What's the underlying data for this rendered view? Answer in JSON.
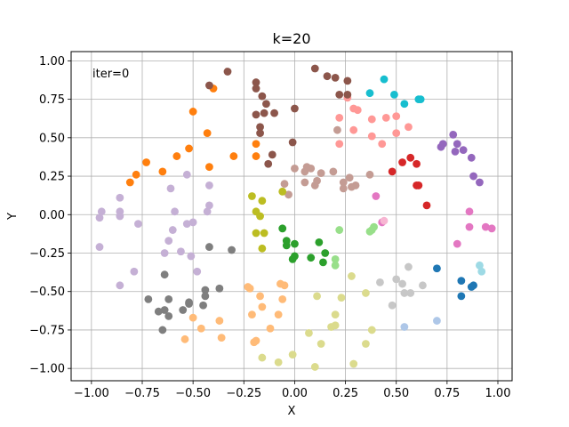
{
  "chart_data": {
    "type": "scatter",
    "title": "k=20",
    "xlabel": "X",
    "ylabel": "Y",
    "annotation": "iter=0",
    "xlim": [
      -1.1,
      1.07
    ],
    "ylim": [
      -1.08,
      1.06
    ],
    "xticks": [
      "−1.00",
      "−0.75",
      "−0.50",
      "−0.25",
      "0.00",
      "0.25",
      "0.50",
      "0.75",
      "1.00"
    ],
    "xtick_values": [
      -1.0,
      -0.75,
      -0.5,
      -0.25,
      0.0,
      0.25,
      0.5,
      0.75,
      1.0
    ],
    "yticks": [
      "1.00",
      "0.75",
      "0.50",
      "0.25",
      "0.00",
      "−0.25",
      "−0.50",
      "−0.75",
      "−1.00"
    ],
    "ytick_values": [
      1.0,
      0.75,
      0.5,
      0.25,
      0.0,
      -0.25,
      -0.5,
      -0.75,
      -1.0
    ],
    "grid": true,
    "series": [
      {
        "color": "#1f77b4",
        "points": [
          [
            0.7,
            -0.35
          ],
          [
            0.82,
            -0.43
          ],
          [
            0.88,
            -0.46
          ],
          [
            0.82,
            -0.53
          ],
          [
            0.87,
            -0.47
          ]
        ]
      },
      {
        "color": "#aec7e8",
        "points": [
          [
            0.7,
            -0.69
          ],
          [
            0.54,
            -0.73
          ]
        ]
      },
      {
        "color": "#ff7f0e",
        "points": [
          [
            -0.5,
            0.67
          ],
          [
            -0.43,
            0.53
          ],
          [
            -0.52,
            0.43
          ],
          [
            -0.42,
            0.31
          ],
          [
            -0.3,
            0.38
          ],
          [
            -0.19,
            0.46
          ],
          [
            -0.19,
            0.38
          ],
          [
            -0.58,
            0.38
          ],
          [
            -0.65,
            0.28
          ],
          [
            -0.73,
            0.34
          ],
          [
            -0.78,
            0.26
          ],
          [
            -0.81,
            0.21
          ],
          [
            -0.4,
            0.82
          ]
        ]
      },
      {
        "color": "#ffbb78",
        "points": [
          [
            -0.5,
            -0.67
          ],
          [
            -0.54,
            -0.81
          ],
          [
            -0.46,
            -0.74
          ],
          [
            -0.37,
            -0.69
          ],
          [
            -0.36,
            -0.8
          ],
          [
            -0.22,
            -0.48
          ],
          [
            -0.23,
            -0.47
          ],
          [
            -0.21,
            -0.65
          ],
          [
            -0.19,
            -0.82
          ],
          [
            -0.2,
            -0.83
          ],
          [
            -0.12,
            -0.74
          ],
          [
            -0.08,
            -0.65
          ],
          [
            -0.05,
            -0.46
          ],
          [
            -0.07,
            -0.45
          ],
          [
            -0.17,
            -0.53
          ],
          [
            -0.06,
            -0.55
          ],
          [
            -0.16,
            -0.6
          ]
        ]
      },
      {
        "color": "#2ca02c",
        "points": [
          [
            -0.06,
            -0.09
          ],
          [
            -0.04,
            -0.17
          ],
          [
            0.0,
            -0.19
          ],
          [
            -0.04,
            -0.2
          ],
          [
            0.0,
            -0.27
          ],
          [
            0.08,
            -0.28
          ],
          [
            0.14,
            -0.31
          ],
          [
            0.15,
            -0.25
          ],
          [
            0.12,
            -0.18
          ],
          [
            -0.01,
            -0.29
          ]
        ]
      },
      {
        "color": "#98df8a",
        "points": [
          [
            0.22,
            -0.1
          ],
          [
            0.2,
            -0.29
          ],
          [
            0.2,
            -0.33
          ],
          [
            0.38,
            -0.1
          ],
          [
            0.37,
            -0.11
          ],
          [
            0.39,
            -0.08
          ]
        ]
      },
      {
        "color": "#d62728",
        "points": [
          [
            0.48,
            0.28
          ],
          [
            0.53,
            0.34
          ],
          [
            0.57,
            0.37
          ],
          [
            0.6,
            0.33
          ],
          [
            0.65,
            0.06
          ],
          [
            0.6,
            0.19
          ],
          [
            0.61,
            0.19
          ]
        ]
      },
      {
        "color": "#ff9896",
        "points": [
          [
            0.22,
            0.63
          ],
          [
            0.26,
            0.76
          ],
          [
            0.29,
            0.69
          ],
          [
            0.31,
            0.68
          ],
          [
            0.38,
            0.62
          ],
          [
            0.45,
            0.63
          ],
          [
            0.5,
            0.64
          ],
          [
            0.56,
            0.57
          ],
          [
            0.43,
            0.46
          ],
          [
            0.38,
            0.51
          ],
          [
            0.5,
            0.53
          ],
          [
            0.29,
            0.55
          ],
          [
            0.22,
            0.46
          ]
        ]
      },
      {
        "color": "#9467bd",
        "points": [
          [
            0.78,
            0.52
          ],
          [
            0.8,
            0.46
          ],
          [
            0.72,
            0.44
          ],
          [
            0.73,
            0.46
          ],
          [
            0.79,
            0.41
          ],
          [
            0.83,
            0.42
          ],
          [
            0.87,
            0.37
          ],
          [
            0.88,
            0.25
          ],
          [
            0.91,
            0.21
          ]
        ]
      },
      {
        "color": "#c5b0d5",
        "points": [
          [
            -0.95,
            0.02
          ],
          [
            -0.96,
            -0.02
          ],
          [
            -0.96,
            -0.21
          ],
          [
            -0.86,
            -0.01
          ],
          [
            -0.86,
            0.02
          ],
          [
            -0.86,
            0.11
          ],
          [
            -0.77,
            -0.06
          ],
          [
            -0.61,
            0.17
          ],
          [
            -0.6,
            -0.1
          ],
          [
            -0.62,
            -0.17
          ],
          [
            -0.56,
            -0.24
          ],
          [
            -0.53,
            -0.06
          ],
          [
            -0.5,
            -0.05
          ],
          [
            -0.42,
            0.06
          ],
          [
            -0.43,
            0.02
          ],
          [
            -0.42,
            0.19
          ],
          [
            -0.51,
            -0.27
          ],
          [
            -0.48,
            -0.37
          ],
          [
            -0.59,
            0.02
          ],
          [
            -0.53,
            0.26
          ],
          [
            -0.79,
            -0.37
          ],
          [
            -0.86,
            -0.46
          ],
          [
            -0.64,
            -0.25
          ]
        ]
      },
      {
        "color": "#8c564b",
        "points": [
          [
            -0.42,
            0.84
          ],
          [
            -0.33,
            0.93
          ],
          [
            -0.19,
            0.86
          ],
          [
            -0.19,
            0.82
          ],
          [
            -0.16,
            0.77
          ],
          [
            -0.14,
            0.72
          ],
          [
            -0.1,
            0.66
          ],
          [
            -0.15,
            0.66
          ],
          [
            -0.19,
            0.65
          ],
          [
            -0.17,
            0.57
          ],
          [
            -0.17,
            0.53
          ],
          [
            -0.11,
            0.39
          ],
          [
            -0.13,
            0.33
          ],
          [
            -0.01,
            0.47
          ],
          [
            0.0,
            0.69
          ],
          [
            0.1,
            0.95
          ],
          [
            0.16,
            0.9
          ],
          [
            0.2,
            0.89
          ],
          [
            0.26,
            0.87
          ],
          [
            0.26,
            0.78
          ],
          [
            0.22,
            0.78
          ]
        ]
      },
      {
        "color": "#c49c94",
        "points": [
          [
            0.06,
            0.31
          ],
          [
            0.05,
            0.28
          ],
          [
            0.08,
            0.3
          ],
          [
            0.1,
            0.19
          ],
          [
            0.11,
            0.22
          ],
          [
            0.13,
            0.27
          ],
          [
            0.19,
            0.28
          ],
          [
            0.24,
            0.17
          ],
          [
            0.24,
            0.21
          ],
          [
            0.27,
            0.24
          ],
          [
            0.28,
            0.18
          ],
          [
            0.3,
            0.19
          ],
          [
            0.37,
            0.26
          ],
          [
            0.0,
            0.3
          ],
          [
            -0.05,
            0.2
          ],
          [
            -0.03,
            0.13
          ],
          [
            0.05,
            0.21
          ],
          [
            0.21,
            0.55
          ]
        ]
      },
      {
        "color": "#e377c2",
        "points": [
          [
            0.4,
            0.12
          ],
          [
            0.43,
            -0.05
          ],
          [
            0.8,
            -0.19
          ],
          [
            0.86,
            0.02
          ],
          [
            0.86,
            -0.08
          ],
          [
            0.94,
            -0.08
          ],
          [
            0.97,
            -0.09
          ]
        ]
      },
      {
        "color": "#f7b6d2",
        "points": [
          [
            0.44,
            -0.04
          ]
        ]
      },
      {
        "color": "#7f7f7f",
        "points": [
          [
            -0.72,
            -0.55
          ],
          [
            -0.67,
            -0.63
          ],
          [
            -0.64,
            -0.62
          ],
          [
            -0.62,
            -0.55
          ],
          [
            -0.64,
            -0.39
          ],
          [
            -0.62,
            -0.66
          ],
          [
            -0.65,
            -0.75
          ],
          [
            -0.55,
            -0.62
          ],
          [
            -0.52,
            -0.57
          ],
          [
            -0.45,
            -0.59
          ],
          [
            -0.44,
            -0.49
          ],
          [
            -0.44,
            -0.53
          ],
          [
            -0.37,
            -0.48
          ],
          [
            -0.31,
            -0.23
          ],
          [
            -0.42,
            -0.21
          ],
          [
            -0.52,
            -0.58
          ]
        ]
      },
      {
        "color": "#c7c7c7",
        "points": [
          [
            0.42,
            -0.44
          ],
          [
            0.5,
            -0.42
          ],
          [
            0.48,
            -0.59
          ],
          [
            0.53,
            -0.45
          ],
          [
            0.56,
            -0.34
          ],
          [
            0.54,
            -0.51
          ],
          [
            0.57,
            -0.51
          ],
          [
            0.63,
            -0.46
          ]
        ]
      },
      {
        "color": "#bcbd22",
        "points": [
          [
            -0.21,
            0.12
          ],
          [
            -0.19,
            0.02
          ],
          [
            -0.16,
            0.09
          ],
          [
            -0.17,
            -0.01
          ],
          [
            -0.19,
            -0.12
          ],
          [
            -0.15,
            -0.12
          ],
          [
            -0.16,
            -0.22
          ],
          [
            -0.06,
            0.15
          ]
        ]
      },
      {
        "color": "#dbdb8d",
        "points": [
          [
            0.28,
            -0.4
          ],
          [
            0.35,
            -0.51
          ],
          [
            0.23,
            -0.54
          ],
          [
            0.11,
            -0.53
          ],
          [
            0.2,
            -0.65
          ],
          [
            0.18,
            -0.73
          ],
          [
            0.2,
            -0.72
          ],
          [
            0.38,
            -0.75
          ],
          [
            0.35,
            -0.84
          ],
          [
            0.13,
            -0.84
          ],
          [
            0.07,
            -0.77
          ],
          [
            -0.01,
            -0.91
          ],
          [
            -0.08,
            -0.96
          ],
          [
            -0.16,
            -0.93
          ],
          [
            0.1,
            -0.99
          ],
          [
            0.29,
            -0.97
          ]
        ]
      },
      {
        "color": "#17becf",
        "points": [
          [
            0.37,
            0.79
          ],
          [
            0.44,
            0.88
          ],
          [
            0.49,
            0.78
          ],
          [
            0.54,
            0.72
          ],
          [
            0.61,
            0.75
          ],
          [
            0.62,
            0.75
          ]
        ]
      },
      {
        "color": "#9edae5",
        "points": [
          [
            0.91,
            -0.33
          ],
          [
            0.92,
            -0.37
          ]
        ]
      }
    ]
  }
}
